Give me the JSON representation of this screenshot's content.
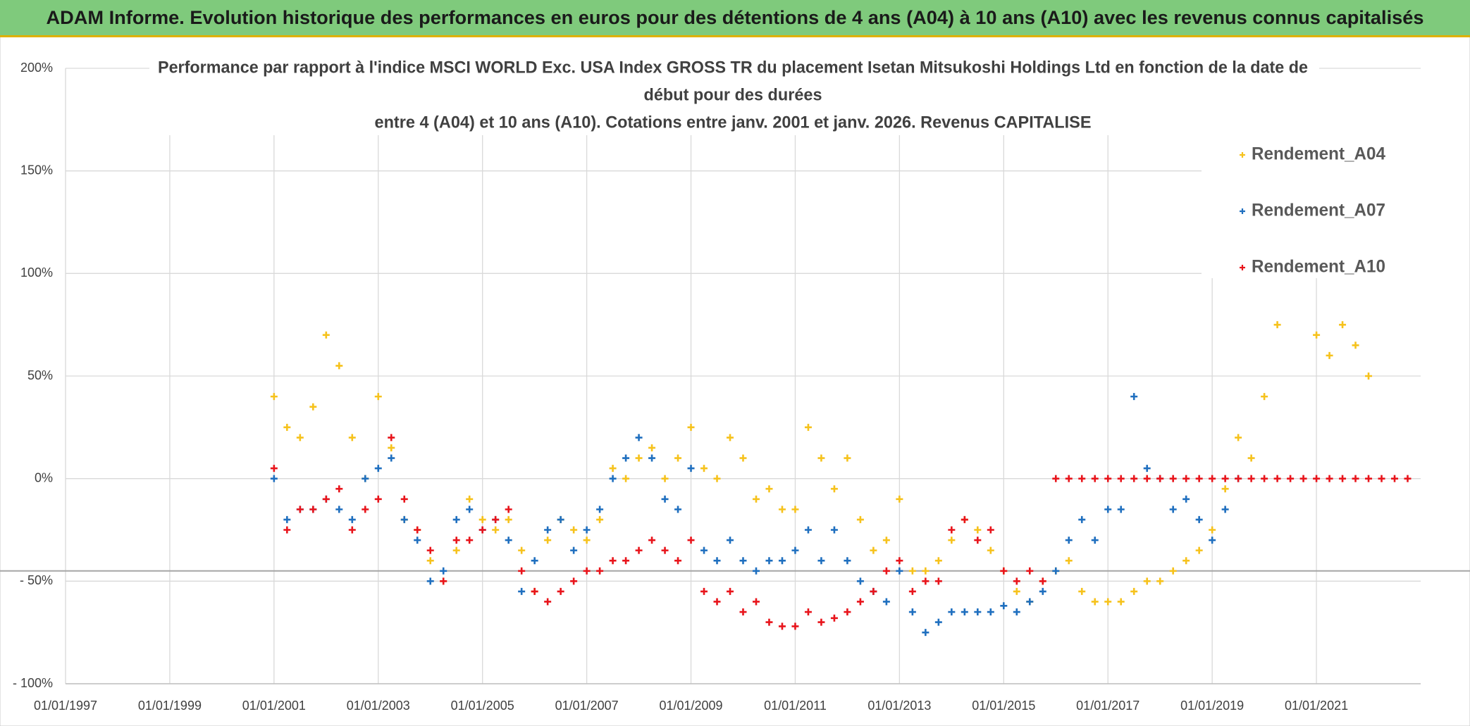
{
  "chart_data": {
    "type": "scatter",
    "title": "ADAM Informe. Evolution historique des performances en euros pour des détentions de 4 ans (A04) à 10 ans (A10) avec les revenus connus capitalisés",
    "subtitle": [
      "Performance par rapport à l'indice MSCI WORLD Exc. USA Index GROSS TR  du placement Isetan Mitsukoshi Holdings Ltd en fonction de la date de",
      "début pour des durées",
      "entre 4 (A04) et 10 ans (A10). Cotations entre janv. 2001 et janv. 2026. Revenus CAPITALISE"
    ],
    "xlim": [
      "01/01/1997",
      "01/01/2023"
    ],
    "xticks": [
      "01/01/1997",
      "01/01/1999",
      "01/01/2001",
      "01/01/2003",
      "01/01/2005",
      "01/01/2007",
      "01/01/2009",
      "01/01/2011",
      "01/01/2013",
      "01/01/2015",
      "01/01/2017",
      "01/01/2019",
      "01/01/2021"
    ],
    "ylim": [
      -100,
      200
    ],
    "yticks": [
      {
        "value": 200,
        "label": "200%"
      },
      {
        "value": 150,
        "label": "150%"
      },
      {
        "value": 100,
        "label": "100%"
      },
      {
        "value": 50,
        "label": "50%"
      },
      {
        "value": 0,
        "label": "0%"
      },
      {
        "value": -50,
        "label": "- 50%"
      },
      {
        "value": -100,
        "label": "- 100%"
      }
    ],
    "grid": true,
    "reference_line": -45,
    "legend": "top-right",
    "series": [
      {
        "name": "Rendement_A04",
        "color": "#f6c21c",
        "x": [
          "01/01/2001",
          "01/04/2001",
          "01/07/2001",
          "01/10/2001",
          "01/01/2002",
          "01/04/2002",
          "01/07/2002",
          "01/10/2002",
          "01/01/2003",
          "01/04/2003",
          "01/07/2003",
          "01/10/2003",
          "01/01/2004",
          "01/04/2004",
          "01/07/2004",
          "01/10/2004",
          "01/01/2005",
          "01/04/2005",
          "01/07/2005",
          "01/10/2005",
          "01/01/2006",
          "01/04/2006",
          "01/07/2006",
          "01/10/2006",
          "01/01/2007",
          "01/04/2007",
          "01/07/2007",
          "01/10/2007",
          "01/01/2008",
          "01/04/2008",
          "01/07/2008",
          "01/10/2008",
          "01/01/2009",
          "01/04/2009",
          "01/07/2009",
          "01/10/2009",
          "01/01/2010",
          "01/04/2010",
          "01/07/2010",
          "01/10/2010",
          "01/01/2011",
          "01/04/2011",
          "01/07/2011",
          "01/10/2011",
          "01/01/2012",
          "01/04/2012",
          "01/07/2012",
          "01/10/2012",
          "01/01/2013",
          "01/04/2013",
          "01/07/2013",
          "01/10/2013",
          "01/01/2014",
          "01/04/2014",
          "01/07/2014",
          "01/10/2014",
          "01/01/2015",
          "01/04/2015",
          "01/07/2015",
          "01/10/2015",
          "01/01/2016",
          "01/04/2016",
          "01/07/2016",
          "01/10/2016",
          "01/01/2017",
          "01/04/2017",
          "01/07/2017",
          "01/10/2017",
          "01/01/2018",
          "01/04/2018",
          "01/07/2018",
          "01/10/2018",
          "01/01/2019",
          "01/04/2019",
          "01/07/2019",
          "01/10/2019",
          "01/01/2020",
          "01/04/2020",
          "01/07/2020",
          "01/10/2020",
          "01/01/2021",
          "01/04/2021",
          "01/07/2021",
          "01/10/2021",
          "01/01/2022"
        ],
        "values": [
          40,
          25,
          20,
          35,
          70,
          55,
          20,
          0,
          40,
          15,
          -20,
          -25,
          -40,
          -50,
          -35,
          -10,
          -20,
          -25,
          -20,
          -35,
          -55,
          -30,
          -20,
          -25,
          -30,
          -20,
          5,
          0,
          10,
          15,
          0,
          10,
          25,
          5,
          0,
          20,
          10,
          -10,
          -5,
          -15,
          -15,
          25,
          10,
          -5,
          10,
          -20,
          -35,
          -30,
          -10,
          -45,
          -45,
          -40,
          -30,
          -20,
          -25,
          -35,
          -45,
          -55,
          -60,
          -50,
          -45,
          -40,
          -55,
          -60,
          -60,
          -60,
          -55,
          -50,
          -50,
          -45,
          -40,
          -35,
          -25,
          -5,
          20,
          10,
          40,
          75,
          null,
          null,
          70,
          60,
          75,
          65,
          50
        ]
      },
      {
        "name": "Rendement_A07",
        "color": "#1f6fbf",
        "x": [
          "01/01/2001",
          "01/04/2001",
          "01/07/2001",
          "01/10/2001",
          "01/01/2002",
          "01/04/2002",
          "01/07/2002",
          "01/10/2002",
          "01/01/2003",
          "01/04/2003",
          "01/07/2003",
          "01/10/2003",
          "01/01/2004",
          "01/04/2004",
          "01/07/2004",
          "01/10/2004",
          "01/01/2005",
          "01/04/2005",
          "01/07/2005",
          "01/10/2005",
          "01/01/2006",
          "01/04/2006",
          "01/07/2006",
          "01/10/2006",
          "01/01/2007",
          "01/04/2007",
          "01/07/2007",
          "01/10/2007",
          "01/01/2008",
          "01/04/2008",
          "01/07/2008",
          "01/10/2008",
          "01/01/2009",
          "01/04/2009",
          "01/07/2009",
          "01/10/2009",
          "01/01/2010",
          "01/04/2010",
          "01/07/2010",
          "01/10/2010",
          "01/01/2011",
          "01/04/2011",
          "01/07/2011",
          "01/10/2011",
          "01/01/2012",
          "01/04/2012",
          "01/07/2012",
          "01/10/2012",
          "01/01/2013",
          "01/04/2013",
          "01/07/2013",
          "01/10/2013",
          "01/01/2014",
          "01/04/2014",
          "01/07/2014",
          "01/10/2014",
          "01/01/2015",
          "01/04/2015",
          "01/07/2015",
          "01/10/2015",
          "01/01/2016",
          "01/04/2016",
          "01/07/2016",
          "01/10/2016",
          "01/01/2017",
          "01/04/2017",
          "01/07/2017",
          "01/10/2017",
          "01/01/2018",
          "01/04/2018",
          "01/07/2018",
          "01/10/2018",
          "01/01/2019",
          "01/04/2019",
          "01/07/2019"
        ],
        "values": [
          0,
          -20,
          -15,
          -15,
          -10,
          -15,
          -20,
          0,
          5,
          10,
          -20,
          -30,
          -50,
          -45,
          -20,
          -15,
          -25,
          -20,
          -30,
          -55,
          -40,
          -25,
          -20,
          -35,
          -25,
          -15,
          0,
          10,
          20,
          10,
          -10,
          -15,
          5,
          -35,
          -40,
          -30,
          -40,
          -45,
          -40,
          -40,
          -35,
          -25,
          -40,
          -25,
          -40,
          -50,
          -55,
          -60,
          -45,
          -65,
          -75,
          -70,
          -65,
          -65,
          -65,
          -65,
          -62,
          -65,
          -60,
          -55,
          -45,
          -30,
          -20,
          -30,
          -15,
          -15,
          40,
          5,
          0,
          -15,
          -10,
          -20,
          -30,
          -15,
          0
        ]
      },
      {
        "name": "Rendement_A10",
        "color": "#e8141b",
        "x": [
          "01/01/2001",
          "01/04/2001",
          "01/07/2001",
          "01/10/2001",
          "01/01/2002",
          "01/04/2002",
          "01/07/2002",
          "01/10/2002",
          "01/01/2003",
          "01/04/2003",
          "01/07/2003",
          "01/10/2003",
          "01/01/2004",
          "01/04/2004",
          "01/07/2004",
          "01/10/2004",
          "01/01/2005",
          "01/04/2005",
          "01/07/2005",
          "01/10/2005",
          "01/01/2006",
          "01/04/2006",
          "01/07/2006",
          "01/10/2006",
          "01/01/2007",
          "01/04/2007",
          "01/07/2007",
          "01/10/2007",
          "01/01/2008",
          "01/04/2008",
          "01/07/2008",
          "01/10/2008",
          "01/01/2009",
          "01/04/2009",
          "01/07/2009",
          "01/10/2009",
          "01/01/2010",
          "01/04/2010",
          "01/07/2010",
          "01/10/2010",
          "01/01/2011",
          "01/04/2011",
          "01/07/2011",
          "01/10/2011",
          "01/01/2012",
          "01/04/2012",
          "01/07/2012",
          "01/10/2012",
          "01/01/2013",
          "01/04/2013",
          "01/07/2013",
          "01/10/2013",
          "01/01/2014",
          "01/04/2014",
          "01/07/2014",
          "01/10/2014",
          "01/01/2015",
          "01/04/2015",
          "01/07/2015",
          "01/10/2015",
          "01/01/2016",
          "01/04/2016",
          "01/07/2016",
          "01/10/2016",
          "01/01/2017",
          "01/04/2017",
          "01/07/2017",
          "01/10/2017",
          "01/01/2018",
          "01/04/2018",
          "01/07/2018",
          "01/10/2018",
          "01/01/2019",
          "01/04/2019",
          "01/07/2019",
          "01/10/2019",
          "01/01/2020",
          "01/04/2020",
          "01/07/2020",
          "01/10/2020",
          "01/01/2021",
          "01/04/2021",
          "01/07/2021",
          "01/10/2021",
          "01/01/2022",
          "01/04/2022",
          "01/07/2022",
          "01/10/2022"
        ],
        "values": [
          5,
          -25,
          -15,
          -15,
          -10,
          -5,
          -25,
          -15,
          -10,
          20,
          -10,
          -25,
          -35,
          -50,
          -30,
          -30,
          -25,
          -20,
          -15,
          -45,
          -55,
          -60,
          -55,
          -50,
          -45,
          -45,
          -40,
          -40,
          -35,
          -30,
          -35,
          -40,
          -30,
          -55,
          -60,
          -55,
          -65,
          -60,
          -70,
          -72,
          -72,
          -65,
          -70,
          -68,
          -65,
          -60,
          -55,
          -45,
          -40,
          -55,
          -50,
          -50,
          -25,
          -20,
          -30,
          -25,
          -45,
          -50,
          -45,
          -50,
          0,
          0,
          0,
          0,
          0,
          0,
          0,
          0,
          0,
          0,
          0,
          0,
          0,
          0,
          0,
          0,
          0,
          0,
          0,
          0,
          0,
          0,
          0,
          0,
          0,
          0,
          0,
          0
        ]
      }
    ]
  }
}
